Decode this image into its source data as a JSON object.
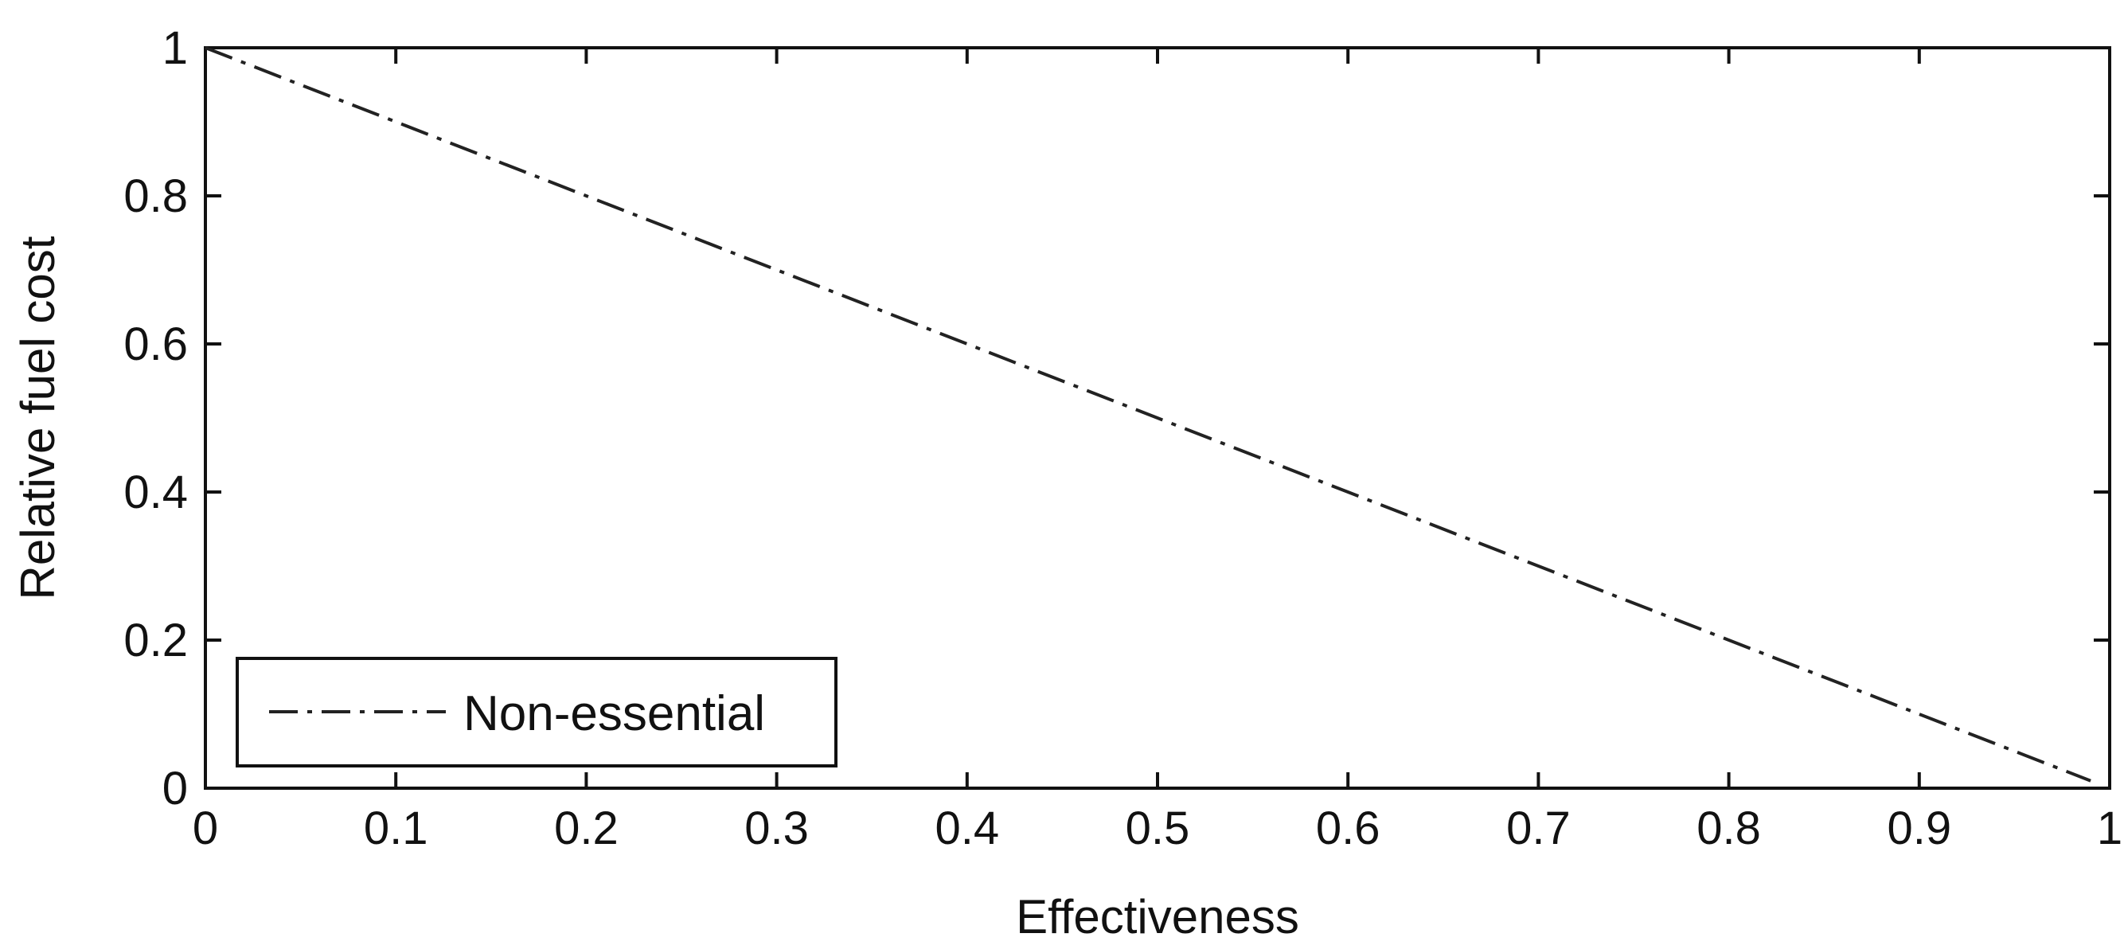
{
  "chart_data": {
    "type": "line",
    "title": "",
    "xlabel": "Effectiveness",
    "ylabel": "Relative fuel cost",
    "xlim": [
      0,
      1
    ],
    "ylim": [
      0,
      1
    ],
    "x_ticks": [
      0,
      0.1,
      0.2,
      0.3,
      0.4,
      0.5,
      0.6,
      0.7,
      0.8,
      0.9,
      1
    ],
    "x_tick_labels": [
      "0",
      "0.1",
      "0.2",
      "0.3",
      "0.4",
      "0.5",
      "0.6",
      "0.7",
      "0.8",
      "0.9",
      "1"
    ],
    "y_ticks": [
      0,
      0.2,
      0.4,
      0.6,
      0.8,
      1
    ],
    "y_tick_labels": [
      "0",
      "0.2",
      "0.4",
      "0.6",
      "0.8",
      "1"
    ],
    "grid": false,
    "legend_position": "bottom-left",
    "series": [
      {
        "name": "Non-essential",
        "line_style": "dash-dot",
        "color": "#222222",
        "x": [
          0,
          0.1,
          0.2,
          0.3,
          0.4,
          0.5,
          0.6,
          0.7,
          0.8,
          0.9,
          0.99
        ],
        "y": [
          1,
          0.9,
          0.8,
          0.7,
          0.6,
          0.5,
          0.4,
          0.3,
          0.2,
          0.1,
          0.01
        ]
      }
    ]
  }
}
